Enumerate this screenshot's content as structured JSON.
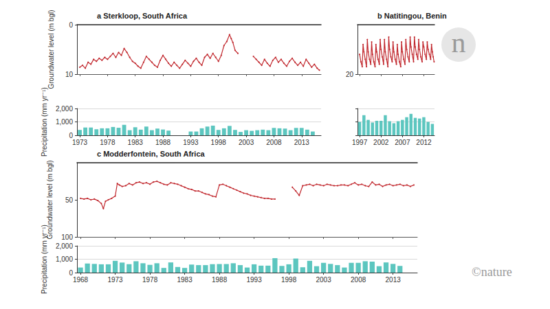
{
  "branding": {
    "badge": "n",
    "credit": "©nature"
  },
  "chart_data": [
    {
      "type": "line",
      "title": "a Sterkloop, South Africa",
      "ylabel": "Groundwater level (m bgl)",
      "x": [
        1973,
        1973.5,
        1974,
        1974.5,
        1975,
        1975.5,
        1976,
        1976.5,
        1977,
        1977.5,
        1978,
        1978.5,
        1979,
        1979.5,
        1980,
        1980.5,
        1981,
        1981.5,
        1982,
        1982.5,
        1983,
        1983.5,
        1984,
        1984.5,
        1985,
        1985.5,
        1986,
        1986.5,
        1987,
        1987.5,
        1988,
        1988.5,
        1989,
        1989.5,
        1990,
        1990.5,
        1991,
        1991.5,
        1992,
        1992.5,
        1993,
        1993.5,
        1994,
        1994.5,
        1995,
        1995.5,
        1996,
        1996.5,
        1997,
        1997.5,
        1998,
        1998.5,
        1999,
        1999.5,
        2000,
        2000.3,
        2000.6,
        2001,
        2001.5,
        2003,
        2004.3,
        2004.8,
        2005.3,
        2005.8,
        2006.3,
        2006.8,
        2007.3,
        2007.8,
        2008.3,
        2008.8,
        2009.3,
        2009.8,
        2010.3,
        2010.8,
        2011.3,
        2011.8,
        2012.3,
        2012.8,
        2013.3,
        2013.8,
        2014.3,
        2014.8,
        2015.3,
        2015.8,
        2016.2
      ],
      "values": [
        8.6,
        8.2,
        8.8,
        7.6,
        8.0,
        7.0,
        7.4,
        6.8,
        7.2,
        6.6,
        7.0,
        6.4,
        5.8,
        6.6,
        5.6,
        6.2,
        4.8,
        5.6,
        6.6,
        7.4,
        7.8,
        8.4,
        8.8,
        7.6,
        6.4,
        7.0,
        7.6,
        8.2,
        8.6,
        7.2,
        6.2,
        7.0,
        7.8,
        8.4,
        7.6,
        8.2,
        8.8,
        8.0,
        7.2,
        7.8,
        8.4,
        7.4,
        6.8,
        7.6,
        8.2,
        6.6,
        6.0,
        6.8,
        5.8,
        6.6,
        7.4,
        6.2,
        4.2,
        3.4,
        2.0,
        2.8,
        3.6,
        5.2,
        5.8,
        null,
        6.4,
        7.0,
        7.6,
        8.2,
        7.0,
        7.8,
        8.4,
        7.2,
        6.6,
        7.6,
        7.0,
        7.8,
        8.4,
        7.4,
        6.8,
        7.6,
        8.2,
        7.6,
        8.4,
        7.0,
        7.8,
        8.6,
        8.0,
        8.8,
        9.2
      ],
      "color": "#c1272d",
      "marker": "dot",
      "line_style": "solid",
      "xlim": [
        1972.5,
        2016.5
      ],
      "xticks": [
        1973,
        1978,
        1983,
        1988,
        1993,
        1998,
        2003,
        2008,
        2013
      ],
      "ylim": [
        10,
        0
      ],
      "yticks": [
        0,
        10
      ],
      "grid": false,
      "tick_labels": "y"
    },
    {
      "type": "bar",
      "ylabel": "Precipitation (mm yr⁻¹)",
      "categories": [
        "1973",
        null,
        null,
        null,
        null,
        "1978",
        null,
        null,
        null,
        null,
        "1983",
        null,
        null,
        null,
        null,
        "1988",
        null,
        null,
        null,
        null,
        "1993",
        null,
        null,
        null,
        null,
        "1998",
        null,
        null,
        null,
        null,
        "2003",
        null,
        null,
        null,
        null,
        "2008",
        null,
        null,
        null,
        null,
        "2013",
        null,
        null,
        null
      ],
      "values": [
        400,
        580,
        580,
        450,
        520,
        520,
        620,
        560,
        780,
        380,
        600,
        420,
        650,
        380,
        500,
        430,
        350,
        null,
        null,
        null,
        280,
        280,
        520,
        650,
        720,
        400,
        520,
        700,
        400,
        250,
        380,
        330,
        380,
        420,
        380,
        550,
        520,
        500,
        380,
        550,
        550,
        420,
        280,
        null
      ],
      "color": "#5cc6bf",
      "ylim": [
        0,
        2000
      ],
      "yticks": [
        0,
        {
          "value": 1000,
          "label": "1,000"
        },
        {
          "value": 2000,
          "label": "2,000"
        }
      ],
      "grid": true
    },
    {
      "type": "line",
      "title": "b Natitingou, Benin",
      "x": [
        1997,
        1997.3,
        1997.6,
        1997.8,
        1998,
        1998.3,
        1998.6,
        1998.8,
        1999,
        1999.3,
        1999.6,
        1999.8,
        2000,
        2000.3,
        2000.6,
        2000.8,
        2001,
        2001.3,
        2001.6,
        2001.8,
        2002,
        2002.3,
        2002.6,
        2002.8,
        2003,
        2003.3,
        2003.6,
        2003.8,
        2004,
        2004.3,
        2004.6,
        2004.8,
        2005,
        2005.3,
        2005.6,
        2005.8,
        2006,
        2006.3,
        2006.6,
        2006.8,
        2007,
        2007.3,
        2007.6,
        2007.8,
        2008,
        2008.3,
        2008.6,
        2008.8,
        2009,
        2009.3,
        2009.6,
        2009.8,
        2010,
        2010.3,
        2010.6,
        2010.8,
        2011,
        2011.3,
        2011.6,
        2011.8,
        2012,
        2012.3,
        2012.6,
        2012.8,
        2013,
        2013.3,
        2013.6,
        2013.8,
        2014,
        2014.2,
        2014.4
      ],
      "values": [
        12,
        15,
        17,
        8,
        11,
        14,
        17,
        6,
        11,
        14,
        16,
        7,
        12,
        15,
        17,
        8,
        11,
        14,
        16,
        6,
        10,
        13,
        16,
        6,
        11,
        14,
        17,
        5,
        10,
        13,
        15,
        7,
        11,
        14,
        16,
        8,
        12,
        15,
        17,
        7,
        11,
        14,
        16,
        6,
        10,
        13,
        15,
        5,
        9,
        12,
        15,
        5,
        9,
        12,
        14,
        6,
        10,
        13,
        15,
        7,
        9,
        12,
        14,
        7,
        10,
        12,
        14,
        8,
        11,
        13,
        15
      ],
      "color": "#c1272d",
      "marker": "dot",
      "line_style": "solid",
      "xlim": [
        1996.5,
        2014.5
      ],
      "xticks": [
        1997,
        2002,
        2007,
        2012
      ],
      "ylim": [
        20,
        0
      ],
      "yticks": [
        20
      ],
      "grid": false,
      "tick_labels": "y"
    },
    {
      "type": "bar",
      "categories": [
        "1997",
        null,
        null,
        null,
        null,
        "2002",
        null,
        null,
        null,
        null,
        "2007",
        null,
        null,
        null,
        null,
        "2012",
        null,
        null
      ],
      "values": [
        1000,
        1500,
        1150,
        950,
        1080,
        1080,
        1500,
        1050,
        900,
        1050,
        1150,
        1350,
        1600,
        1300,
        1250,
        1350,
        1000,
        850
      ],
      "color": "#5cc6bf",
      "ylim": [
        0,
        2000
      ],
      "yticks": [
        0,
        1000,
        2000
      ],
      "grid": true,
      "tick_labels": "x"
    },
    {
      "type": "line",
      "title": "c Modderfontein, South Africa",
      "ylabel": "Groundwater level (m bgl)",
      "x": [
        1968,
        1968.5,
        1969,
        1969.5,
        1970,
        1970.5,
        1971,
        1971.3,
        1971.6,
        1972,
        1972.5,
        1973,
        1973.3,
        1973.6,
        1974,
        1974.5,
        1975,
        1975.5,
        1976,
        1976.5,
        1977,
        1977.5,
        1978,
        1978.5,
        1979,
        1979.5,
        1980,
        1980.5,
        1981,
        1981.5,
        1982,
        1982.5,
        1983,
        1983.5,
        1984,
        1984.5,
        1985,
        1985.5,
        1986,
        1986.5,
        1987,
        1987.5,
        1988,
        1988.5,
        1989,
        1989.5,
        1990,
        1990.5,
        1991,
        1991.5,
        1992,
        1992.5,
        1993,
        1993.5,
        1994,
        1994.5,
        1995,
        1995.5,
        1996,
        1997,
        1998.5,
        1999,
        1999.5,
        2000,
        2000.5,
        2001,
        2001.5,
        2002,
        2002.5,
        2003,
        2003.5,
        2004,
        2004.5,
        2005,
        2005.5,
        2006,
        2006.5,
        2007,
        2007.5,
        2008,
        2008.5,
        2009,
        2009.5,
        2010,
        2010.5,
        2011,
        2011.5,
        2012,
        2012.5,
        2013,
        2013.5,
        2014,
        2014.5,
        2015,
        2015.5,
        2016
      ],
      "values": [
        48,
        49,
        48,
        50,
        49,
        51,
        55,
        62,
        52,
        50,
        48,
        45,
        28,
        30,
        32,
        31,
        28,
        30,
        27,
        26,
        28,
        27,
        29,
        26,
        25,
        27,
        29,
        30,
        27,
        28,
        29,
        31,
        33,
        35,
        36,
        38,
        38,
        40,
        42,
        43,
        45,
        46,
        30,
        29,
        31,
        33,
        35,
        37,
        39,
        41,
        42,
        44,
        45,
        46,
        47,
        48,
        48,
        49,
        49,
        null,
        33,
        38,
        44,
        31,
        30,
        29,
        31,
        29,
        30,
        31,
        29,
        30,
        31,
        31,
        30,
        30,
        31,
        29,
        27,
        30,
        29,
        31,
        32,
        26,
        30,
        29,
        32,
        30,
        29,
        31,
        30,
        29,
        31,
        30,
        32,
        30
      ],
      "color": "#c1272d",
      "marker": "dot",
      "line_style": "solid",
      "xlim": [
        1967.5,
        2016.5
      ],
      "xticks": [
        1968,
        1973,
        1978,
        1983,
        1988,
        1993,
        1998,
        2003,
        2008,
        2013
      ],
      "ylim": [
        100,
        0
      ],
      "yticks": [
        50,
        100
      ],
      "grid": false,
      "tick_labels": "y"
    },
    {
      "type": "bar",
      "ylabel": "Precipitation (mm yr⁻¹)",
      "categories": [
        "1968",
        null,
        null,
        null,
        null,
        "1973",
        null,
        null,
        null,
        null,
        "1978",
        null,
        null,
        null,
        null,
        "1983",
        null,
        null,
        null,
        null,
        "1988",
        null,
        null,
        null,
        null,
        "1993",
        null,
        null,
        null,
        null,
        "1998",
        null,
        null,
        null,
        null,
        "2003",
        null,
        null,
        null,
        null,
        "2008",
        null,
        null,
        null,
        null,
        "2013",
        null,
        null,
        null
      ],
      "values": [
        380,
        680,
        650,
        620,
        620,
        880,
        750,
        630,
        850,
        700,
        580,
        700,
        350,
        760,
        420,
        350,
        600,
        560,
        560,
        630,
        640,
        640,
        700,
        560,
        380,
        620,
        520,
        520,
        1080,
        500,
        620,
        1050,
        400,
        880,
        480,
        730,
        650,
        560,
        380,
        730,
        730,
        850,
        820,
        480,
        760,
        650,
        500,
        null,
        null
      ],
      "color": "#5cc6bf",
      "ylim": [
        0,
        2000
      ],
      "yticks": [
        0,
        {
          "value": 1000,
          "label": "1,000"
        },
        {
          "value": 2000,
          "label": "2,000"
        }
      ],
      "grid": true
    }
  ]
}
